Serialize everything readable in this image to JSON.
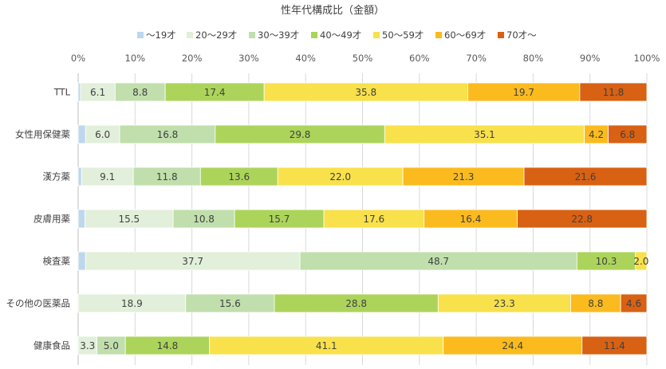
{
  "chart_data": {
    "type": "bar",
    "orientation": "horizontal-stacked-100",
    "title": "性年代構成比（金額）",
    "xlim": [
      0,
      100
    ],
    "xticks": [
      "0%",
      "10%",
      "20%",
      "30%",
      "40%",
      "50%",
      "60%",
      "70%",
      "80%",
      "90%",
      "100%"
    ],
    "legend_position": "top",
    "categories": [
      "TTL",
      "女性用保健薬",
      "漢方薬",
      "皮膚用薬",
      "検査薬",
      "その他の医薬品",
      "健康食品"
    ],
    "series": [
      {
        "name": "～19才",
        "color": "#bdd7ee",
        "values": [
          0.4,
          1.3,
          0.6,
          1.2,
          1.3,
          0,
          0
        ],
        "labels": [
          null,
          null,
          null,
          null,
          null,
          null,
          null
        ]
      },
      {
        "name": "20～29才",
        "color": "#e2efda",
        "values": [
          6.1,
          6.0,
          9.1,
          15.5,
          37.7,
          18.9,
          3.3
        ],
        "labels": [
          "6.1",
          "6.0",
          "9.1",
          "15.5",
          "37.7",
          "18.9",
          "3.3"
        ]
      },
      {
        "name": "30～39才",
        "color": "#c0dfac",
        "values": [
          8.8,
          16.8,
          11.8,
          10.8,
          48.7,
          15.6,
          5.0
        ],
        "labels": [
          "8.8",
          "16.8",
          "11.8",
          "10.8",
          "48.7",
          "15.6",
          "5.0"
        ]
      },
      {
        "name": "40～49才",
        "color": "#acd45a",
        "values": [
          17.4,
          29.8,
          13.6,
          15.7,
          10.3,
          28.8,
          14.8
        ],
        "labels": [
          "17.4",
          "29.8",
          "13.6",
          "15.7",
          "10.3",
          "28.8",
          "14.8"
        ]
      },
      {
        "name": "50～59才",
        "color": "#f8e14b",
        "values": [
          35.8,
          35.1,
          22.0,
          17.6,
          2.0,
          23.3,
          41.1
        ],
        "labels": [
          "35.8",
          "35.1",
          "22.0",
          "17.6",
          "2.0",
          "23.3",
          "41.1"
        ]
      },
      {
        "name": "60～69才",
        "color": "#fbbb1e",
        "values": [
          19.7,
          4.2,
          21.3,
          16.4,
          0,
          8.8,
          24.4
        ],
        "labels": [
          "19.7",
          "4.2",
          "21.3",
          "16.4",
          null,
          "8.8",
          "24.4"
        ]
      },
      {
        "name": "70才～",
        "color": "#d86113",
        "values": [
          11.8,
          6.8,
          21.6,
          22.8,
          0,
          4.6,
          11.4
        ],
        "labels": [
          "11.8",
          "6.8",
          "21.6",
          "22.8",
          null,
          "4.6",
          "11.4"
        ]
      }
    ],
    "grid": true
  }
}
